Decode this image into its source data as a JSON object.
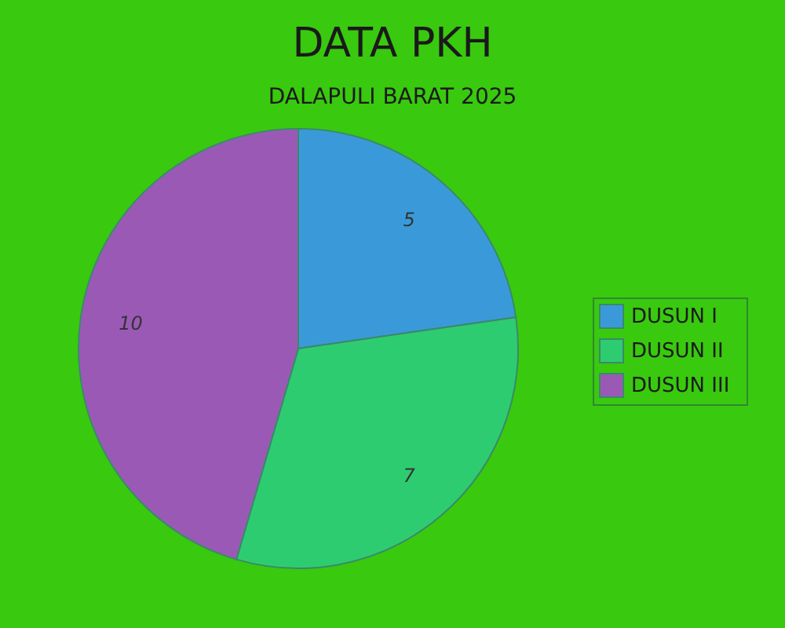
{
  "chart_data": {
    "type": "pie",
    "title": "DATA PKH",
    "subtitle": "DALAPULI BARAT 2025",
    "categories": [
      "DUSUN I",
      "DUSUN II",
      "DUSUN III"
    ],
    "values": [
      5,
      7,
      10
    ],
    "colors": [
      "#3a9ad9",
      "#2ecc71",
      "#9b59b6"
    ],
    "data_labels": true,
    "legend": "right"
  }
}
